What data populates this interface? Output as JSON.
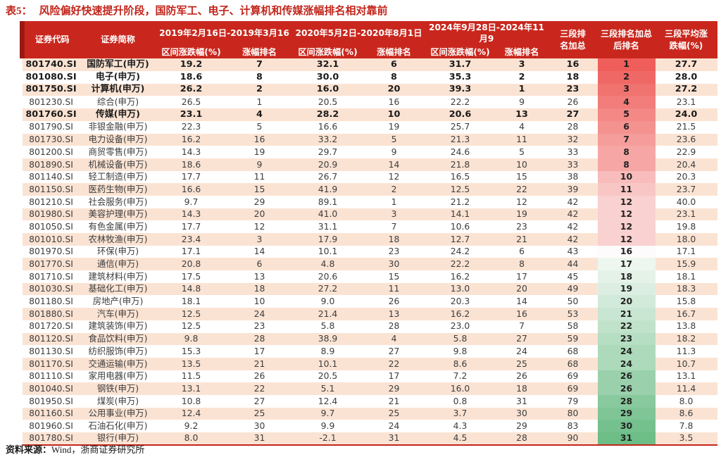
{
  "title": {
    "label": "表5：",
    "text": "风险偏好快速提升阶段，国防军工、电子、计算机和传媒涨幅排名相对靠前"
  },
  "table": {
    "header": {
      "code": "证券代码",
      "name": "证券简称",
      "periods": [
        {
          "range": "2019年2月16日-2019年3月16",
          "value_label": "区间涨跌幅(%)",
          "rank_label": "涨幅排名"
        },
        {
          "range": "2020年5月2日-2020年8月1日",
          "value_label": "区间涨跌幅(%)",
          "rank_label": "涨幅排名"
        },
        {
          "range": "2024年9月28日-2024年11月9",
          "value_label": "区间涨跌幅(%)",
          "rank_label": "涨幅排名"
        }
      ],
      "sum": "三段排\n名加总",
      "final_rank": "三段排名加总\n后排名",
      "avg": "三段平均涨\n跌幅(%)"
    },
    "rows": [
      {
        "code": "801740.SI",
        "name": "国防军工(申万)",
        "v1": "19.2",
        "r1": "7",
        "v2": "32.1",
        "r2": "6",
        "v3": "31.7",
        "r3": "3",
        "sum": "16",
        "rank": "1",
        "avg": "27.7",
        "bold": true
      },
      {
        "code": "801080.SI",
        "name": "电子(申万)",
        "v1": "18.6",
        "r1": "8",
        "v2": "30.0",
        "r2": "8",
        "v3": "35.3",
        "r3": "2",
        "sum": "18",
        "rank": "2",
        "avg": "28.0",
        "bold": true
      },
      {
        "code": "801750.SI",
        "name": "计算机(申万)",
        "v1": "26.2",
        "r1": "2",
        "v2": "16.0",
        "r2": "20",
        "v3": "39.3",
        "r3": "1",
        "sum": "23",
        "rank": "3",
        "avg": "27.2",
        "bold": true
      },
      {
        "code": "801230.SI",
        "name": "综合(申万)",
        "v1": "26.5",
        "r1": "1",
        "v2": "20.5",
        "r2": "16",
        "v3": "22.2",
        "r3": "9",
        "sum": "26",
        "rank": "4",
        "avg": "23.1",
        "bold": false
      },
      {
        "code": "801760.SI",
        "name": "传媒(申万)",
        "v1": "23.1",
        "r1": "4",
        "v2": "28.2",
        "r2": "10",
        "v3": "20.6",
        "r3": "13",
        "sum": "27",
        "rank": "5",
        "avg": "24.0",
        "bold": true
      },
      {
        "code": "801790.SI",
        "name": "非银金融(申万)",
        "v1": "22.3",
        "r1": "5",
        "v2": "16.6",
        "r2": "19",
        "v3": "25.7",
        "r3": "4",
        "sum": "28",
        "rank": "6",
        "avg": "21.5",
        "bold": false
      },
      {
        "code": "801730.SI",
        "name": "电力设备(申万)",
        "v1": "16.2",
        "r1": "16",
        "v2": "33.2",
        "r2": "5",
        "v3": "21.3",
        "r3": "11",
        "sum": "32",
        "rank": "7",
        "avg": "23.6",
        "bold": false
      },
      {
        "code": "801200.SI",
        "name": "商贸零售(申万)",
        "v1": "14.3",
        "r1": "19",
        "v2": "29.7",
        "r2": "9",
        "v3": "24.6",
        "r3": "5",
        "sum": "33",
        "rank": "8",
        "avg": "22.9",
        "bold": false
      },
      {
        "code": "801890.SI",
        "name": "机械设备(申万)",
        "v1": "18.6",
        "r1": "9",
        "v2": "20.9",
        "r2": "14",
        "v3": "21.8",
        "r3": "10",
        "sum": "33",
        "rank": "8",
        "avg": "20.4",
        "bold": false
      },
      {
        "code": "801140.SI",
        "name": "轻工制造(申万)",
        "v1": "17.7",
        "r1": "11",
        "v2": "26.7",
        "r2": "12",
        "v3": "16.5",
        "r3": "15",
        "sum": "38",
        "rank": "10",
        "avg": "20.3",
        "bold": false
      },
      {
        "code": "801150.SI",
        "name": "医药生物(申万)",
        "v1": "16.6",
        "r1": "15",
        "v2": "41.9",
        "r2": "2",
        "v3": "12.5",
        "r3": "22",
        "sum": "39",
        "rank": "11",
        "avg": "23.7",
        "bold": false
      },
      {
        "code": "801210.SI",
        "name": "社会服务(申万)",
        "v1": "9.7",
        "r1": "29",
        "v2": "89.1",
        "r2": "1",
        "v3": "21.2",
        "r3": "12",
        "sum": "42",
        "rank": "12",
        "avg": "40.0",
        "bold": false
      },
      {
        "code": "801980.SI",
        "name": "美容护理(申万)",
        "v1": "14.3",
        "r1": "20",
        "v2": "41.0",
        "r2": "3",
        "v3": "14.1",
        "r3": "19",
        "sum": "42",
        "rank": "12",
        "avg": "23.1",
        "bold": false
      },
      {
        "code": "801050.SI",
        "name": "有色金属(申万)",
        "v1": "17.7",
        "r1": "12",
        "v2": "31.1",
        "r2": "7",
        "v3": "10.6",
        "r3": "23",
        "sum": "42",
        "rank": "12",
        "avg": "19.8",
        "bold": false
      },
      {
        "code": "801010.SI",
        "name": "农林牧渔(申万)",
        "v1": "23.4",
        "r1": "3",
        "v2": "17.9",
        "r2": "18",
        "v3": "12.7",
        "r3": "21",
        "sum": "42",
        "rank": "12",
        "avg": "18.0",
        "bold": false
      },
      {
        "code": "801970.SI",
        "name": "环保(申万)",
        "v1": "17.1",
        "r1": "14",
        "v2": "10.1",
        "r2": "23",
        "v3": "24.2",
        "r3": "6",
        "sum": "43",
        "rank": "16",
        "avg": "17.1",
        "bold": false
      },
      {
        "code": "801770.SI",
        "name": "通信(申万)",
        "v1": "20.8",
        "r1": "6",
        "v2": "4.8",
        "r2": "30",
        "v3": "22.2",
        "r3": "8",
        "sum": "44",
        "rank": "17",
        "avg": "15.9",
        "bold": false
      },
      {
        "code": "801710.SI",
        "name": "建筑材料(申万)",
        "v1": "17.5",
        "r1": "13",
        "v2": "20.6",
        "r2": "15",
        "v3": "16.2",
        "r3": "17",
        "sum": "45",
        "rank": "18",
        "avg": "18.1",
        "bold": false
      },
      {
        "code": "801030.SI",
        "name": "基础化工(申万)",
        "v1": "14.8",
        "r1": "18",
        "v2": "27.2",
        "r2": "11",
        "v3": "13.0",
        "r3": "20",
        "sum": "49",
        "rank": "19",
        "avg": "18.3",
        "bold": false
      },
      {
        "code": "801180.SI",
        "name": "房地产(申万)",
        "v1": "18.1",
        "r1": "10",
        "v2": "9.0",
        "r2": "26",
        "v3": "20.3",
        "r3": "14",
        "sum": "50",
        "rank": "20",
        "avg": "15.8",
        "bold": false
      },
      {
        "code": "801880.SI",
        "name": "汽车(申万)",
        "v1": "12.5",
        "r1": "24",
        "v2": "21.4",
        "r2": "13",
        "v3": "16.2",
        "r3": "16",
        "sum": "53",
        "rank": "21",
        "avg": "16.7",
        "bold": false
      },
      {
        "code": "801720.SI",
        "name": "建筑装饰(申万)",
        "v1": "12.5",
        "r1": "23",
        "v2": "5.8",
        "r2": "28",
        "v3": "23.0",
        "r3": "7",
        "sum": "58",
        "rank": "22",
        "avg": "13.8",
        "bold": false
      },
      {
        "code": "801120.SI",
        "name": "食品饮料(申万)",
        "v1": "9.8",
        "r1": "28",
        "v2": "38.9",
        "r2": "4",
        "v3": "5.8",
        "r3": "27",
        "sum": "59",
        "rank": "23",
        "avg": "18.2",
        "bold": false
      },
      {
        "code": "801130.SI",
        "name": "纺织服饰(申万)",
        "v1": "15.3",
        "r1": "17",
        "v2": "8.9",
        "r2": "27",
        "v3": "9.8",
        "r3": "24",
        "sum": "68",
        "rank": "24",
        "avg": "11.3",
        "bold": false
      },
      {
        "code": "801170.SI",
        "name": "交通运输(申万)",
        "v1": "13.5",
        "r1": "21",
        "v2": "10.1",
        "r2": "22",
        "v3": "8.6",
        "r3": "25",
        "sum": "68",
        "rank": "24",
        "avg": "10.7",
        "bold": false
      },
      {
        "code": "801110.SI",
        "name": "家用电器(申万)",
        "v1": "11.5",
        "r1": "26",
        "v2": "20.5",
        "r2": "17",
        "v3": "7.2",
        "r3": "26",
        "sum": "69",
        "rank": "26",
        "avg": "13.1",
        "bold": false
      },
      {
        "code": "801040.SI",
        "name": "钢铁(申万)",
        "v1": "13.1",
        "r1": "22",
        "v2": "5.1",
        "r2": "29",
        "v3": "16.0",
        "r3": "18",
        "sum": "69",
        "rank": "26",
        "avg": "11.4",
        "bold": false
      },
      {
        "code": "801950.SI",
        "name": "煤炭(申万)",
        "v1": "10.8",
        "r1": "27",
        "v2": "12.4",
        "r2": "21",
        "v3": "0.8",
        "r3": "31",
        "sum": "79",
        "rank": "28",
        "avg": "8.0",
        "bold": false
      },
      {
        "code": "801160.SI",
        "name": "公用事业(申万)",
        "v1": "12.4",
        "r1": "25",
        "v2": "9.7",
        "r2": "25",
        "v3": "3.7",
        "r3": "30",
        "sum": "80",
        "rank": "29",
        "avg": "8.6",
        "bold": false
      },
      {
        "code": "801960.SI",
        "name": "石油石化(申万)",
        "v1": "9.2",
        "r1": "30",
        "v2": "9.9",
        "r2": "24",
        "v3": "4.3",
        "r3": "29",
        "sum": "83",
        "rank": "30",
        "avg": "7.8",
        "bold": false
      },
      {
        "code": "801780.SI",
        "name": "银行(申万)",
        "v1": "8.0",
        "r1": "31",
        "v2": "-2.1",
        "r2": "31",
        "v3": "4.5",
        "r3": "28",
        "sum": "90",
        "rank": "31",
        "avg": "3.5",
        "bold": false
      }
    ]
  },
  "footer": {
    "source_label": "资料来源：",
    "source_text": "Wind，浙商证券研究所"
  },
  "colors": {
    "title_red": "#c2251b",
    "header_bg": "#c9271d",
    "header_accent": "#9a1a11",
    "header_text": "#ffffff",
    "stripe": "#fbe3d3",
    "cell_text": "#3d3d3d",
    "bold_text": "#1b1b1b",
    "bottom_line": "#c2251b",
    "rank_scale": {
      "red_top": "#ef5e5a",
      "white_mid": "#fdfbfb",
      "green_start": "#eef6f0",
      "green_end": "#6cbd86"
    }
  }
}
